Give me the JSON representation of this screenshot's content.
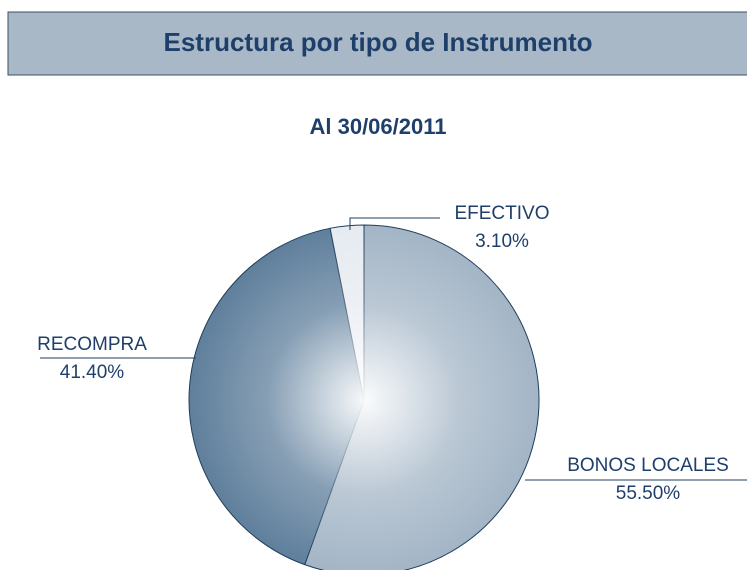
{
  "chart_data": {
    "type": "pie",
    "title": "Estructura por tipo de Instrumento",
    "subtitle": "Al 30/06/2011",
    "categories": [
      "BONOS LOCALES",
      "RECOMPRA",
      "EFECTIVO"
    ],
    "values": [
      55.5,
      41.4,
      3.1
    ],
    "value_labels": [
      "55.50%",
      "41.40%",
      "3.10%"
    ],
    "colors": [
      "#a3b5c6",
      "#5f7f9c",
      "#e6ebf1"
    ]
  }
}
